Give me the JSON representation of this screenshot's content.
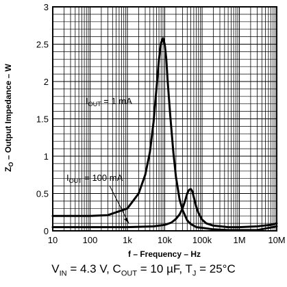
{
  "chart_data": {
    "type": "line",
    "title": "",
    "xlabel": "f – Frequency – Hz",
    "ylabel_main": "Z",
    "ylabel_sub": "O",
    "ylabel_rest": " – Output Impedance – W",
    "x_scale": "log",
    "xlim": [
      10,
      10000000
    ],
    "ylim": [
      0,
      3
    ],
    "grid": true,
    "x_ticks": [
      {
        "value": 10,
        "label": "10"
      },
      {
        "value": 100,
        "label": "100"
      },
      {
        "value": 1000,
        "label": "1k"
      },
      {
        "value": 10000,
        "label": "10k"
      },
      {
        "value": 100000,
        "label": "100k"
      },
      {
        "value": 1000000,
        "label": "1M"
      },
      {
        "value": 10000000,
        "label": "10M"
      }
    ],
    "y_ticks": [
      {
        "value": 0,
        "label": "0"
      },
      {
        "value": 0.5,
        "label": "0.5"
      },
      {
        "value": 1,
        "label": "1"
      },
      {
        "value": 1.5,
        "label": "1.5"
      },
      {
        "value": 2,
        "label": "2"
      },
      {
        "value": 2.5,
        "label": "2.5"
      },
      {
        "value": 3,
        "label": "3"
      }
    ],
    "series": [
      {
        "annotation_main": "I",
        "annotation_sub": "OUT",
        "annotation_rest": " = 1 mA",
        "x": [
          10,
          50,
          100,
          300,
          1000,
          2000,
          3000,
          4000,
          5000,
          6000,
          7000,
          8000,
          9000,
          10000,
          11000,
          12000,
          14000,
          17000,
          20000,
          25000,
          30000,
          40000,
          50000,
          70000,
          100000,
          200000,
          500000,
          1000000,
          3000000,
          10000000
        ],
        "y": [
          0.2,
          0.2,
          0.2,
          0.21,
          0.3,
          0.5,
          0.75,
          1.05,
          1.45,
          1.9,
          2.3,
          2.52,
          2.58,
          2.5,
          2.3,
          2.0,
          1.55,
          1.05,
          0.72,
          0.42,
          0.28,
          0.14,
          0.09,
          0.05,
          0.04,
          0.02,
          0.01,
          0.01,
          0.01,
          0.06
        ]
      },
      {
        "annotation_main": "I",
        "annotation_sub": "OUT",
        "annotation_rest": " = 100 mA",
        "x": [
          10,
          100,
          1000,
          5000,
          10000,
          15000,
          20000,
          25000,
          30000,
          35000,
          40000,
          45000,
          50000,
          55000,
          60000,
          70000,
          80000,
          100000,
          130000,
          200000,
          500000,
          1000000,
          3000000,
          7000000,
          10000000
        ],
        "y": [
          0.05,
          0.05,
          0.05,
          0.06,
          0.08,
          0.11,
          0.16,
          0.22,
          0.3,
          0.4,
          0.5,
          0.55,
          0.56,
          0.53,
          0.45,
          0.32,
          0.24,
          0.15,
          0.1,
          0.07,
          0.05,
          0.05,
          0.06,
          0.08,
          0.1
        ]
      }
    ]
  },
  "caption": {
    "v": "V",
    "v_sub": "IN",
    "v_val": " = 4.3 V, C",
    "c_sub": "OUT",
    "c_val": " = 10 µF, T",
    "t_sub": "J",
    "t_val": " = 25°C"
  }
}
